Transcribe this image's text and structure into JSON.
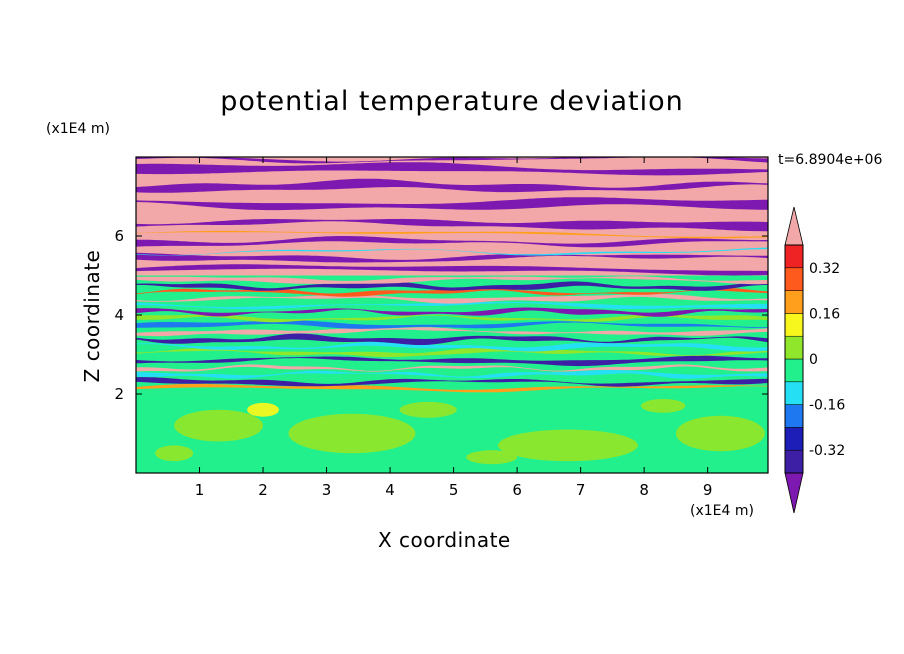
{
  "chart_data": {
    "type": "heatmap",
    "title": "potential temperature deviation",
    "xlabel": "X coordinate",
    "ylabel": "Z coordinate",
    "x_unit": "(x1E4 m)",
    "y_unit": "(x1E4 m)",
    "time_label": "t=6.8904e+06",
    "xlim": [
      0,
      9.95
    ],
    "ylim": [
      0,
      8
    ],
    "x_ticks": [
      "1",
      "2",
      "3",
      "4",
      "5",
      "6",
      "7",
      "8",
      "9"
    ],
    "y_ticks": [
      "2",
      "4",
      "6"
    ],
    "colorbar": {
      "labels": [
        "0.32",
        "0.16",
        "0",
        "-0.16",
        "-0.32"
      ],
      "label_values": [
        0.32,
        0.16,
        0,
        -0.16,
        -0.32
      ],
      "levels": [
        -0.4,
        -0.32,
        -0.24,
        -0.16,
        -0.08,
        0,
        0.08,
        0.16,
        0.24,
        0.32,
        0.4
      ],
      "colors": [
        "#7d18b0",
        "#3d1fa6",
        "#1d1db8",
        "#1e78f0",
        "#25e0f5",
        "#22f08c",
        "#90e62a",
        "#f7f71e",
        "#ff9f1c",
        "#ff5a1e",
        "#ef2323",
        "#f2a8a8"
      ],
      "extend": "both"
    },
    "regions": [
      {
        "z_range": [
          0,
          2.0
        ],
        "dominant": "#22f08c",
        "secondary": [
          "#90e62a",
          "#f7f71e"
        ],
        "description_value": "near zero, slightly positive"
      },
      {
        "z_range": [
          2.0,
          5.0
        ],
        "dominant": "mixed",
        "secondary": [
          "#3d1fa6",
          "#25e0f5",
          "#90e62a",
          "#f2a8a8",
          "#ff9f1c"
        ],
        "description_value": "horizontal banded layers"
      },
      {
        "z_range": [
          5.0,
          8.0
        ],
        "dominant": "alternating",
        "secondary": [
          "#f2a8a8",
          "#7d18b0"
        ],
        "description_value": "strong alternating layers"
      }
    ]
  }
}
